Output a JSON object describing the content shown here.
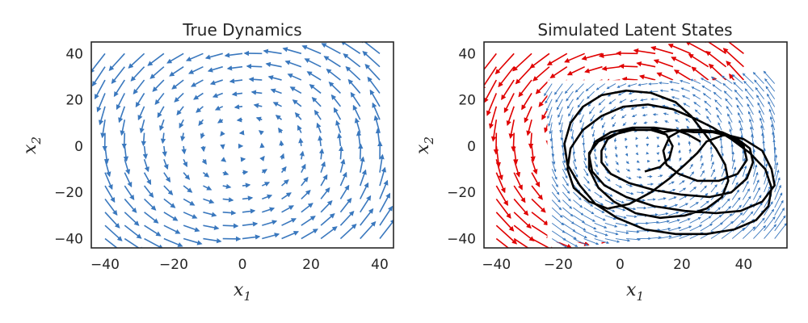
{
  "chart_data": [
    {
      "type": "quiver",
      "title": "True Dynamics",
      "xlabel": "x",
      "xlabel_sub": "1",
      "ylabel": "x",
      "ylabel_sub": "2",
      "xlim": [
        -44,
        44
      ],
      "ylim": [
        -44,
        45
      ],
      "xticks": [
        -40,
        -20,
        0,
        20,
        40
      ],
      "yticks": [
        -40,
        -20,
        0,
        20,
        40
      ],
      "arrow_color": "#3a78be",
      "field": {
        "model": "linear-rotation",
        "matrix": [
          [
            -0.1,
            -0.8
          ],
          [
            0.8,
            -0.1
          ]
        ],
        "grid_x": {
          "start": -40,
          "end": 40,
          "count": 15
        },
        "grid_y": {
          "start": -40,
          "end": 40,
          "count": 15
        }
      }
    },
    {
      "type": "quiver",
      "title": "Simulated Latent States",
      "xlabel": "x",
      "xlabel_sub": "1",
      "ylabel": "x",
      "ylabel_sub": "2",
      "xlim": [
        -44,
        54
      ],
      "ylim": [
        -44,
        45
      ],
      "xticks": [
        -40,
        -20,
        0,
        20,
        40
      ],
      "yticks": [
        -40,
        -20,
        0,
        20,
        40
      ],
      "series": [
        {
          "color": "#e00000",
          "field": {
            "model": "linear-rotation",
            "matrix": [
              [
                -0.1,
                -0.8
              ],
              [
                0.8,
                -0.1
              ]
            ],
            "grid_x": {
              "start": -40,
              "end": 40,
              "count": 15
            },
            "grid_y": {
              "start": -40,
              "end": 40,
              "count": 15
            }
          }
        },
        {
          "color": "#3a78be",
          "field": {
            "model": "linear-rotation",
            "matrix": [
              [
                -0.1,
                -0.8
              ],
              [
                0.8,
                -0.1
              ]
            ],
            "center": [
              10,
              0
            ],
            "grid_x": {
              "start": -22,
              "end": 50,
              "count": 22
            },
            "grid_y": {
              "start": -40,
              "end": 27,
              "count": 21
            }
          }
        }
      ],
      "trajectory": {
        "color": "#000000",
        "points": [
          [
            26,
            2
          ],
          [
            22,
            5
          ],
          [
            18,
            7
          ],
          [
            14,
            6
          ],
          [
            10,
            8
          ],
          [
            5,
            8
          ],
          [
            0,
            6
          ],
          [
            -4,
            3
          ],
          [
            -6,
            -2
          ],
          [
            -6,
            -7
          ],
          [
            -3,
            -12
          ],
          [
            3,
            -16
          ],
          [
            11,
            -19
          ],
          [
            20,
            -21
          ],
          [
            29,
            -22
          ],
          [
            36,
            -20
          ],
          [
            41,
            -14
          ],
          [
            43,
            -7
          ],
          [
            42,
            -1
          ],
          [
            38,
            3
          ],
          [
            33,
            6
          ],
          [
            26,
            7
          ],
          [
            20,
            7
          ],
          [
            16,
            4
          ],
          [
            14,
            -2
          ],
          [
            15,
            -8
          ],
          [
            19,
            -12
          ],
          [
            25,
            -15
          ],
          [
            32,
            -15
          ],
          [
            38,
            -12
          ],
          [
            41,
            -6
          ],
          [
            40,
            0
          ],
          [
            36,
            4
          ],
          [
            30,
            6
          ],
          [
            24,
            6
          ],
          [
            17,
            7
          ],
          [
            11,
            8
          ],
          [
            4,
            8
          ],
          [
            -3,
            6
          ],
          [
            -8,
            2
          ],
          [
            -10,
            -4
          ],
          [
            -9,
            -11
          ],
          [
            -5,
            -17
          ],
          [
            2,
            -22
          ],
          [
            11,
            -26
          ],
          [
            21,
            -28
          ],
          [
            31,
            -29
          ],
          [
            39,
            -28
          ],
          [
            46,
            -24
          ],
          [
            50,
            -17
          ],
          [
            49,
            -10
          ],
          [
            46,
            -2
          ],
          [
            40,
            3
          ],
          [
            34,
            5
          ],
          [
            28,
            2
          ],
          [
            25,
            -3
          ],
          [
            21,
            -8
          ],
          [
            16,
            -14
          ],
          [
            10,
            -20
          ],
          [
            3,
            -25
          ],
          [
            -4,
            -27
          ],
          [
            -10,
            -24
          ],
          [
            -15,
            -18
          ],
          [
            -17,
            -10
          ],
          [
            -16,
            -1
          ],
          [
            -12,
            7
          ],
          [
            -6,
            13
          ],
          [
            1,
            17
          ],
          [
            9,
            18
          ],
          [
            17,
            16
          ],
          [
            24,
            12
          ],
          [
            30,
            8
          ],
          [
            36,
            3
          ],
          [
            42,
            -3
          ],
          [
            47,
            -10
          ],
          [
            49,
            -18
          ],
          [
            48,
            -26
          ],
          [
            44,
            -32
          ],
          [
            37,
            -36
          ],
          [
            28,
            -38
          ],
          [
            18,
            -38
          ],
          [
            8,
            -36
          ],
          [
            -1,
            -31
          ],
          [
            -8,
            -25
          ],
          [
            -13,
            -17
          ],
          [
            -17,
            -8
          ],
          [
            -18,
            1
          ],
          [
            -16,
            10
          ],
          [
            -12,
            17
          ],
          [
            -6,
            22
          ],
          [
            2,
            24
          ],
          [
            10,
            23
          ],
          [
            18,
            19
          ],
          [
            23,
            13
          ],
          [
            27,
            6
          ],
          [
            31,
            -1
          ],
          [
            34,
            -8
          ],
          [
            35,
            -15
          ],
          [
            33,
            -22
          ],
          [
            28,
            -27
          ],
          [
            21,
            -30
          ],
          [
            13,
            -31
          ],
          [
            5,
            -29
          ],
          [
            -2,
            -24
          ],
          [
            -7,
            -18
          ],
          [
            -10,
            -10
          ],
          [
            -10,
            -3
          ],
          [
            -7,
            2
          ],
          [
            -2,
            5
          ],
          [
            4,
            7
          ],
          [
            10,
            7
          ],
          [
            15,
            5
          ],
          [
            17,
            0
          ],
          [
            16,
            -5
          ],
          [
            13,
            -9
          ],
          [
            8,
            -11
          ]
        ]
      }
    }
  ]
}
